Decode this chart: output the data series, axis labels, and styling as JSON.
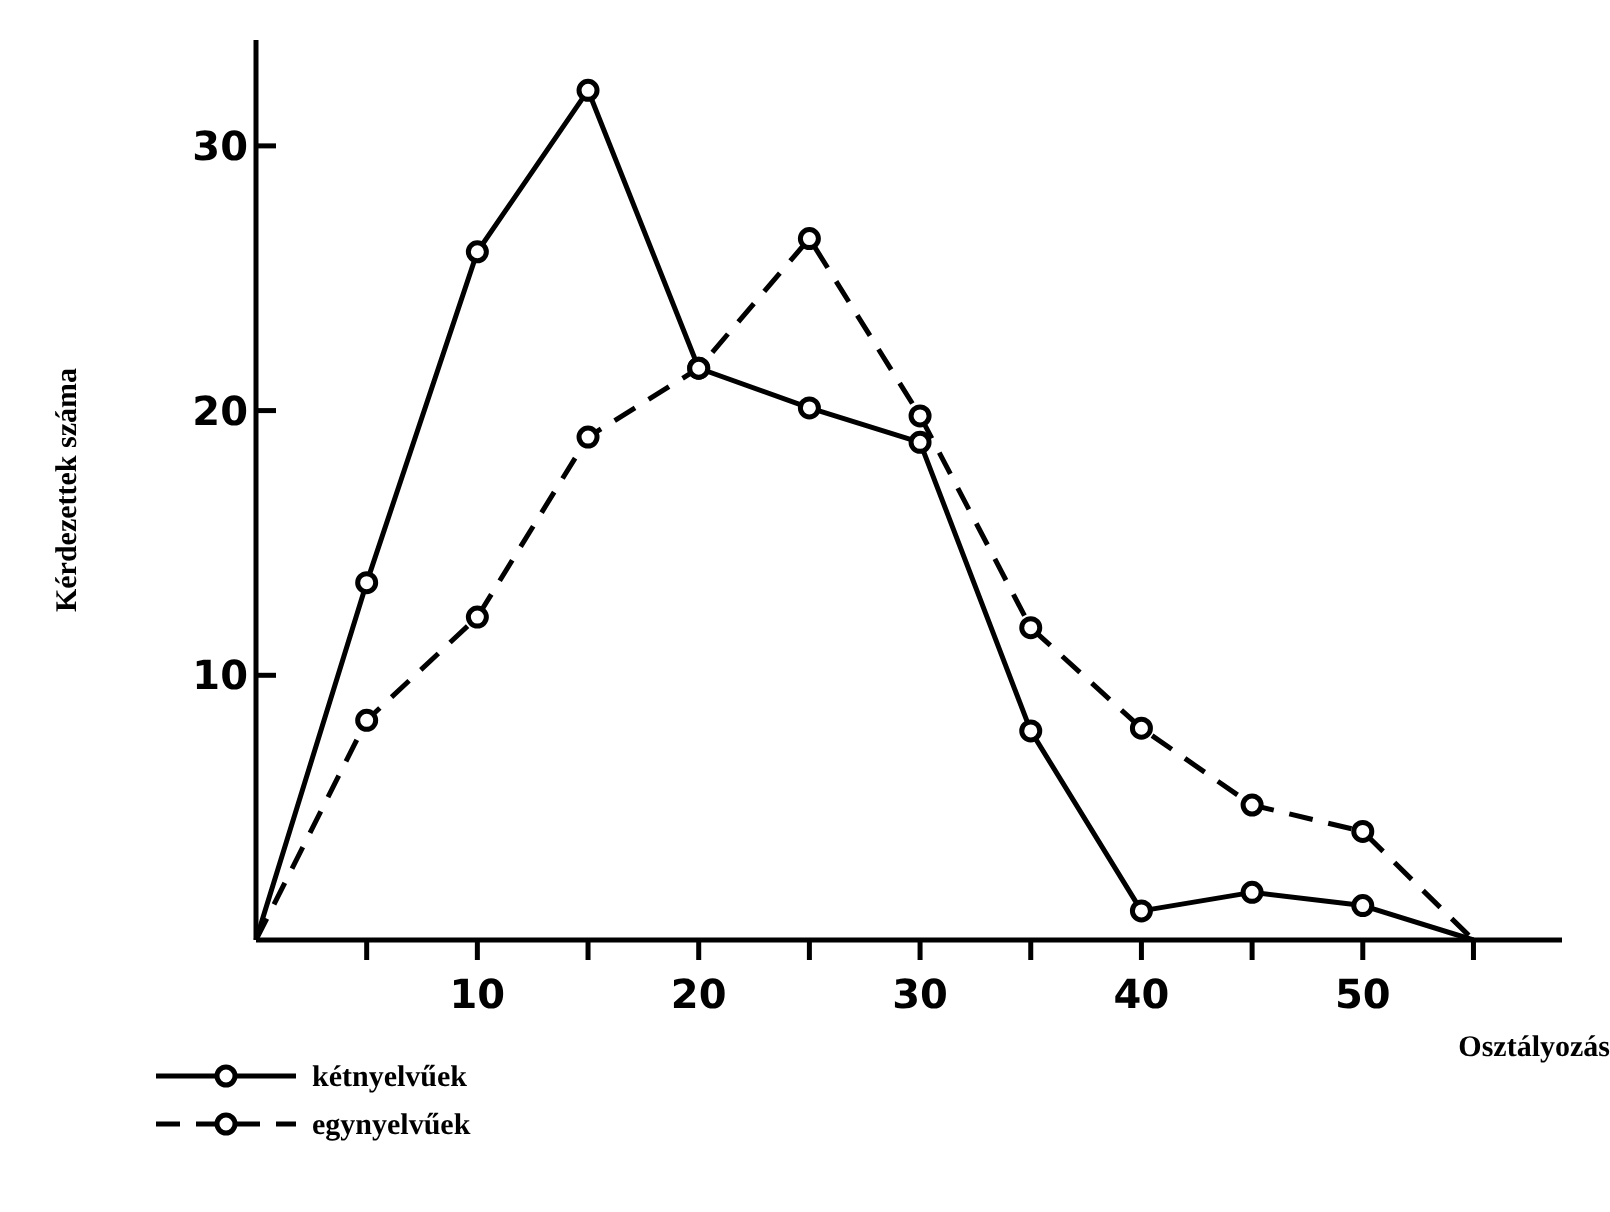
{
  "chart_data": {
    "type": "line",
    "xlabel": "Osztályozás",
    "ylabel": "Kérdezettek száma",
    "xlim": [
      0,
      59
    ],
    "ylim": [
      0,
      34
    ],
    "xticks": [
      {
        "value": 5,
        "label": null
      },
      10,
      {
        "value": 15,
        "label": null
      },
      20,
      {
        "value": 25,
        "label": null
      },
      30,
      {
        "value": 35,
        "label": null
      },
      40,
      {
        "value": 45,
        "label": null
      },
      50,
      {
        "value": 55,
        "label": null
      }
    ],
    "yticks": [
      10,
      20,
      30
    ],
    "marker": "circle",
    "grid": false,
    "legend": "bottom left",
    "series": [
      {
        "name": "kétnyelvűek",
        "color": "#000000",
        "line_style": "solid",
        "x": [
          0,
          5,
          10,
          15,
          20,
          25,
          30,
          35,
          40,
          45,
          50,
          55
        ],
        "values": [
          0,
          13.5,
          26,
          32.1,
          21.6,
          20.1,
          18.8,
          7.9,
          1.1,
          1.8,
          1.3,
          0
        ]
      },
      {
        "name": "egynyelvűek",
        "color": "#000000",
        "line_style": "dashed",
        "x": [
          0,
          5,
          10,
          15,
          20,
          25,
          30,
          35,
          40,
          45,
          50,
          55
        ],
        "values": [
          0,
          8.3,
          12.2,
          19.0,
          21.6,
          26.5,
          19.8,
          11.8,
          8.0,
          5.1,
          4.1,
          0
        ]
      }
    ]
  }
}
